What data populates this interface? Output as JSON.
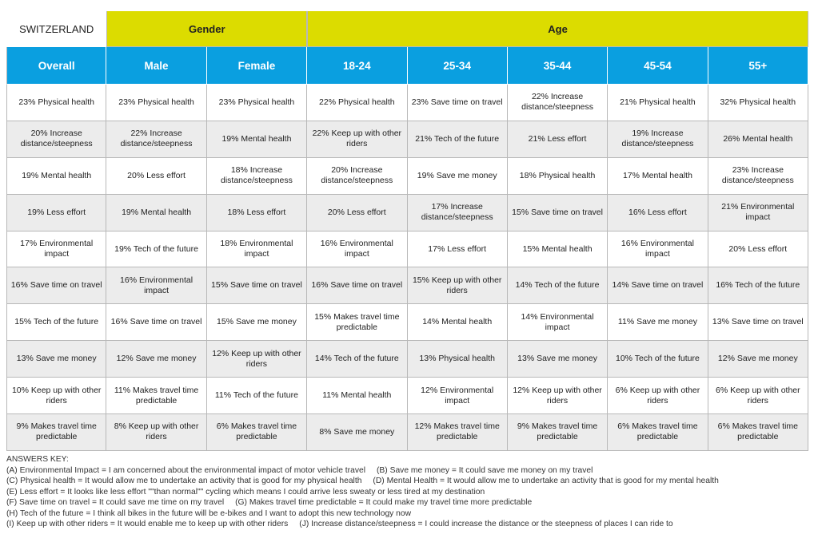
{
  "table": {
    "corner": "SWITZERLAND",
    "groups": [
      "Gender",
      "Age"
    ],
    "columns": [
      "Overall",
      "Male",
      "Female",
      "18-24",
      "25-34",
      "35-44",
      "45-54",
      "55+"
    ],
    "rows": [
      [
        "23% Physical health",
        "23% Physical health",
        "23% Physical health",
        "22% Physical health",
        "23% Save time on travel",
        "22% Increase distance/steepness",
        "21% Physical health",
        "32% Physical health"
      ],
      [
        "20% Increase distance/steepness",
        "22% Increase distance/steepness",
        "19% Mental health",
        "22% Keep up with other riders",
        "21% Tech of the future",
        "21% Less effort",
        "19% Increase distance/steepness",
        "26% Mental health"
      ],
      [
        "19% Mental health",
        "20% Less effort",
        "18% Increase distance/steepness",
        "20% Increase distance/steepness",
        "19% Save me money",
        "18% Physical health",
        "17% Mental health",
        "23% Increase distance/steepness"
      ],
      [
        "19% Less effort",
        "19% Mental health",
        "18% Less effort",
        "20% Less effort",
        "17% Increase distance/steepness",
        "15% Save time on travel",
        "16% Less effort",
        "21% Environmental impact"
      ],
      [
        "17% Environmental impact",
        "19% Tech of the future",
        "18% Environmental impact",
        "16% Environmental impact",
        "17% Less effort",
        "15% Mental health",
        "16% Environmental impact",
        "20% Less effort"
      ],
      [
        "16% Save time on travel",
        "16% Environmental impact",
        "15% Save time on travel",
        "16% Save time on travel",
        "15% Keep up with other riders",
        "14% Tech of the future",
        "14% Save time on travel",
        "16% Tech of the future"
      ],
      [
        "15% Tech of the future",
        "16% Save time on travel",
        "15% Save me money",
        "15% Makes travel time predictable",
        "14% Mental health",
        "14% Environmental impact",
        "11% Save me money",
        "13% Save time on travel"
      ],
      [
        "13% Save me money",
        "12% Save me money",
        "12% Keep up with other riders",
        "14% Tech of the future",
        "13% Physical health",
        "13% Save me money",
        "10% Tech of the future",
        "12% Save me money"
      ],
      [
        "10% Keep up with other riders",
        "11% Makes travel time predictable",
        "11% Tech of the future",
        "11% Mental health",
        "12% Environmental impact",
        "12% Keep up with other riders",
        "6% Keep up with other riders",
        "6% Keep up with other riders"
      ],
      [
        "9% Makes travel time predictable",
        "8% Keep up with other riders",
        "6% Makes travel time predictable",
        "8% Save me money",
        "12% Makes travel time predictable",
        "9% Makes travel time predictable",
        "6% Makes travel time predictable",
        "6% Makes travel time predictable"
      ]
    ]
  },
  "key": {
    "title": "ANSWERS KEY:",
    "lines": [
      [
        "(A) Environmental Impact = I am concerned about the environmental impact of motor vehicle travel",
        "(B) Save me money = It could save me money on my travel"
      ],
      [
        "(C) Physical health = It would allow me to undertake an activity that is good for my physical health",
        "(D) Mental Health = It would allow me to undertake an activity that is good for my mental health"
      ],
      [
        "(E) Less effort = It looks like less effort \"\"than normal\"\" cycling which means I could arrive less sweaty or less tired at my destination"
      ],
      [
        "(F) Save time on travel = It could save me time on my travel",
        "(G) Makes travel time predictable = It could make my travel time more predictable"
      ],
      [
        "(H) Tech of the future = I think all bikes in the future will be e-bikes and I want to adopt this new technology now"
      ],
      [
        "(I) Keep up with other riders = It would enable me to keep up with other riders",
        "(J) Increase distance/steepness = I could increase the distance or the steepness of places I can ride to"
      ]
    ]
  }
}
